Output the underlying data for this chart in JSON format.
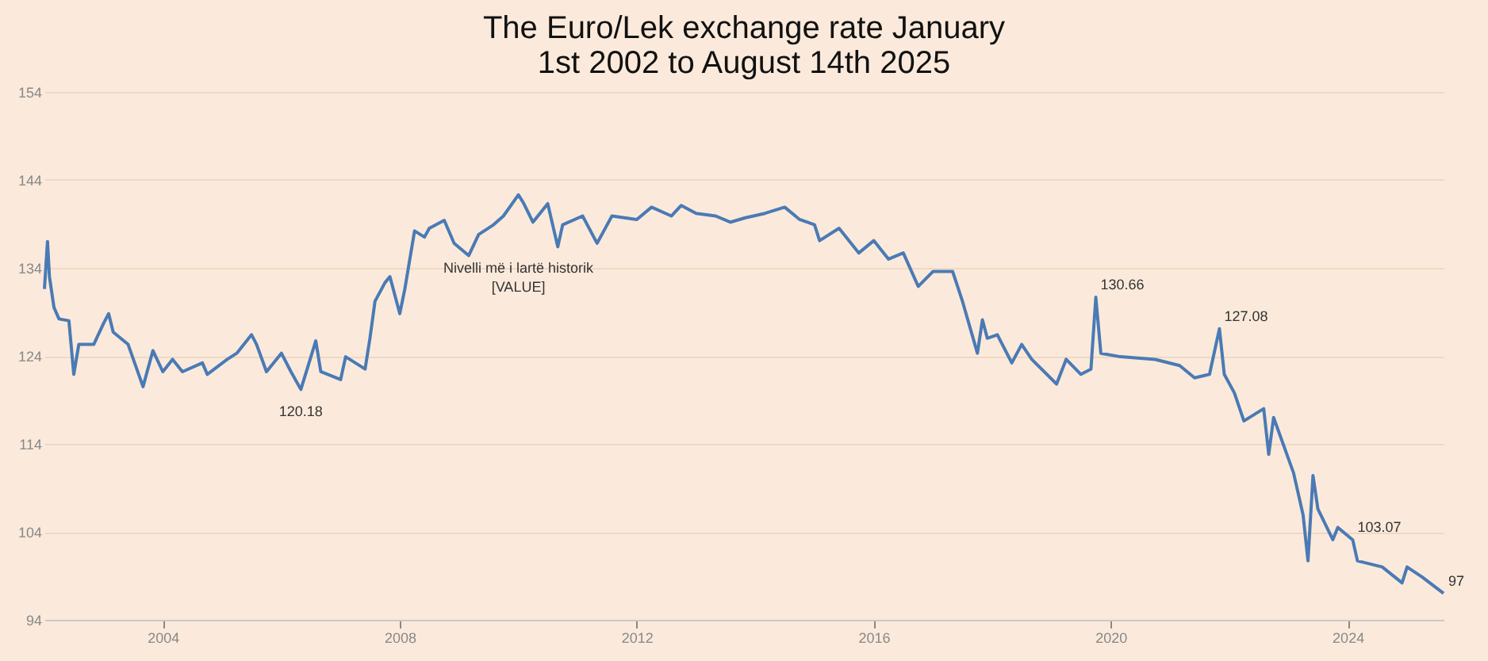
{
  "chart_data": {
    "type": "line",
    "title": "The Euro/Lek exchange rate January 1st 2002 to August 14th 2025",
    "x": [
      "2002-01-01",
      "2002-01-20",
      "2002-02",
      "2002-03",
      "2002-04",
      "2002-06",
      "2002-07",
      "2002-08",
      "2002-11",
      "2003-01",
      "2003-02",
      "2003-03",
      "2003-06",
      "2003-09",
      "2003-11",
      "2004-01",
      "2004-03",
      "2004-05",
      "2004-09",
      "2004-10",
      "2005-02",
      "2005-04",
      "2005-07",
      "2005-08",
      "2005-10",
      "2006-01",
      "2006-03",
      "2006-05",
      "2006-08",
      "2006-09",
      "2007-01",
      "2007-02",
      "2007-06",
      "2007-07",
      "2007-08",
      "2007-10",
      "2007-11",
      "2008-01",
      "2008-02",
      "2008-04",
      "2008-06",
      "2008-07",
      "2008-10",
      "2008-12",
      "2009-03",
      "2009-05",
      "2009-08",
      "2009-10",
      "2010-01",
      "2010-02",
      "2010-04",
      "2010-07",
      "2010-09",
      "2010-10",
      "2011-02",
      "2011-05",
      "2011-08",
      "2012-01",
      "2012-04",
      "2012-08",
      "2012-10",
      "2013-01",
      "2013-05",
      "2013-08",
      "2013-11",
      "2014-03",
      "2014-07",
      "2014-10",
      "2015-01",
      "2015-02",
      "2015-06",
      "2015-10",
      "2016-01",
      "2016-04",
      "2016-07",
      "2016-10",
      "2017-01",
      "2017-05",
      "2017-07",
      "2017-10",
      "2017-11",
      "2017-12",
      "2018-02",
      "2018-05",
      "2018-07",
      "2018-09",
      "2019-02",
      "2019-04",
      "2019-07",
      "2019-09",
      "2019-10",
      "2019-11",
      "2020-03",
      "2020-10",
      "2021-03",
      "2021-06",
      "2021-09",
      "2021-11",
      "2021-12",
      "2022-02",
      "2022-04",
      "2022-08",
      "2022-09",
      "2022-10",
      "2023-02",
      "2023-04",
      "2023-05",
      "2023-06",
      "2023-07",
      "2023-10",
      "2023-11",
      "2024-02",
      "2024-03",
      "2024-08",
      "2024-12",
      "2025-01",
      "2025-04",
      "2025-08-14"
    ],
    "series": [
      {
        "color": "#4a7ab5",
        "values": [
          131.6,
          137.0,
          133,
          129.5,
          128.2,
          128,
          121.9,
          125.3,
          125.3,
          127.7,
          128.8,
          126.7,
          125.3,
          120.5,
          124.6,
          122.2,
          123.6,
          122.2,
          123.2,
          121.9,
          123.6,
          124.3,
          126.4,
          125.3,
          122.2,
          124.3,
          122.2,
          120.18,
          125.7,
          122.2,
          121.3,
          123.9,
          122.5,
          126,
          130.2,
          132.3,
          133,
          128.8,
          131.6,
          138.2,
          137.5,
          138.5,
          139.4,
          136.8,
          135.4,
          137.8,
          138.9,
          139.9,
          142.3,
          141.4,
          139.2,
          141.3,
          136.4,
          138.9,
          139.9,
          136.8,
          139.9,
          139.5,
          140.9,
          139.9,
          141.1,
          140.2,
          139.9,
          139.2,
          139.7,
          140.2,
          140.9,
          139.5,
          138.9,
          137.1,
          138.5,
          135.7,
          137.1,
          135,
          135.7,
          131.9,
          133.6,
          133.6,
          130.2,
          124.3,
          128.1,
          126,
          126.4,
          123.2,
          125.3,
          123.6,
          120.8,
          123.6,
          121.9,
          122.5,
          130.66,
          124.3,
          123.9,
          123.6,
          122.9,
          121.5,
          121.9,
          127.08,
          121.9,
          119.8,
          116.6,
          118,
          112.8,
          117,
          110.7,
          105.9,
          100.7,
          110.4,
          106.6,
          103.1,
          104.5,
          103.07,
          100.7,
          100,
          98.2,
          100,
          98.9,
          97
        ]
      }
    ],
    "xlim": [
      "2002-01-01",
      "2025-08-14"
    ],
    "ylim": [
      94,
      154
    ],
    "yticks": [
      94,
      104,
      114,
      124,
      134,
      144,
      154
    ],
    "xticks": [
      {
        "value": "2004-01-01",
        "label": "2004"
      },
      {
        "value": "2008-01-01",
        "label": "2008"
      },
      {
        "value": "2012-01-01",
        "label": "2012"
      },
      {
        "value": "2016-01-01",
        "label": "2016"
      },
      {
        "value": "2020-01-01",
        "label": "2020"
      },
      {
        "value": "2024-01-01",
        "label": "2024"
      }
    ],
    "grid": "y",
    "marker": "none",
    "line_style": "solid",
    "annotations": [
      {
        "text": "120.18",
        "x": "2006-05",
        "y": 120.18
      },
      "Nivelli më i lartë historik",
      "[VALUE]",
      {
        "text": "130.66",
        "x": "2019-10",
        "y": 130.66
      },
      {
        "text": "127.08",
        "x": "2021-11",
        "y": 127.08
      },
      {
        "text": "103.07",
        "x": "2024-02",
        "y": 103.07
      },
      {
        "text": "97",
        "x": "2025-08-14",
        "y": 97
      }
    ]
  }
}
